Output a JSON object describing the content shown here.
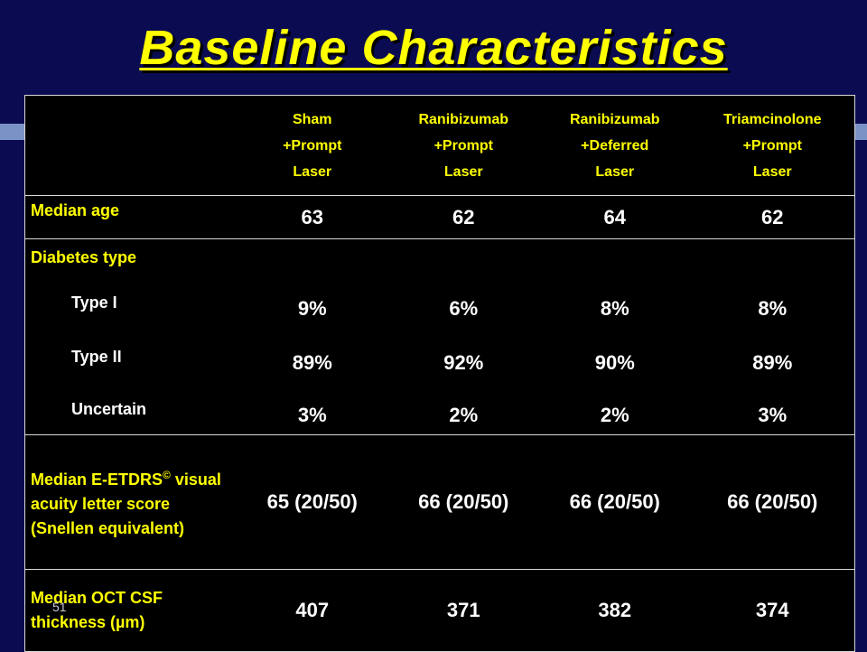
{
  "slide": {
    "title": "Baseline Characteristics",
    "number": "51"
  },
  "table": {
    "columns": [
      {
        "line1": "Sham",
        "line2": "+Prompt",
        "line3": "Laser"
      },
      {
        "line1": "Ranibizumab",
        "line2": "+Prompt",
        "line3": "Laser"
      },
      {
        "line1": "Ranibizumab",
        "line2": "+Deferred",
        "line3": "Laser"
      },
      {
        "line1": "Triamcinolone",
        "line2": "+Prompt",
        "line3": "Laser"
      }
    ],
    "median_age": {
      "label": "Median age",
      "values": [
        "63",
        "62",
        "64",
        "62"
      ]
    },
    "diabetes_type": {
      "label": "Diabetes type",
      "type1": {
        "label": "Type I",
        "values": [
          "9%",
          "6%",
          "8%",
          "8%"
        ]
      },
      "type2": {
        "label": "Type II",
        "values": [
          "89%",
          "92%",
          "90%",
          "89%"
        ]
      },
      "uncertain": {
        "label": "Uncertain",
        "values": [
          "3%",
          "2%",
          "2%",
          "3%"
        ]
      }
    },
    "visual_acuity": {
      "label_line1": "Median E-ETDRS",
      "label_mark": "©",
      "label_rest": "visual acuity letter score (Snellen equivalent)",
      "values": [
        "65 (20/50)",
        "66 (20/50)",
        "66 (20/50)",
        "66 (20/50)"
      ]
    },
    "oct": {
      "label": "Median OCT CSF thickness (µm)",
      "values": [
        "407",
        "371",
        "382",
        "374"
      ]
    }
  }
}
